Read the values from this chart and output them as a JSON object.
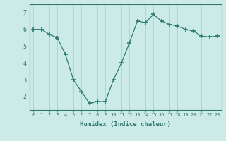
{
  "x": [
    0,
    1,
    2,
    3,
    4,
    5,
    6,
    7,
    8,
    9,
    10,
    11,
    12,
    13,
    14,
    15,
    16,
    17,
    18,
    19,
    20,
    21,
    22,
    23
  ],
  "y": [
    6.0,
    6.0,
    5.7,
    5.5,
    4.5,
    3.0,
    2.3,
    1.6,
    1.7,
    1.7,
    3.0,
    4.0,
    5.2,
    6.5,
    6.4,
    6.9,
    6.5,
    6.3,
    6.2,
    6.0,
    5.9,
    5.6,
    5.55,
    5.6
  ],
  "xlabel": "Humidex (Indice chaleur)",
  "ylim": [
    1.2,
    7.5
  ],
  "xlim": [
    -0.5,
    23.5
  ],
  "yticks": [
    2,
    3,
    4,
    5,
    6,
    7
  ],
  "xtick_labels": [
    "0",
    "1",
    "2",
    "3",
    "4",
    "5",
    "6",
    "7",
    "8",
    "9",
    "10",
    "11",
    "12",
    "13",
    "14",
    "15",
    "16",
    "17",
    "18",
    "19",
    "20",
    "21",
    "22",
    "23"
  ],
  "line_color": "#2e7b6e",
  "marker": "+",
  "marker_size": 4,
  "marker_lw": 1.2,
  "bg_color": "#cceae8",
  "grid_color": "#afd6d2",
  "axis_bg": "#cceae8",
  "tick_color": "#2e7b6e",
  "label_color": "#2e7b6e",
  "tick_fontsize": 5.0,
  "xlabel_fontsize": 6.5
}
